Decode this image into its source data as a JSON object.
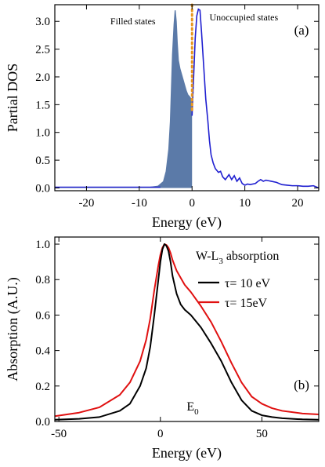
{
  "chart_data": [
    {
      "type": "area",
      "panel_label": "(a)",
      "xlabel": "Energy (eV)",
      "ylabel": "Partial DOS",
      "xlim": [
        -26,
        24
      ],
      "ylim": [
        -0.05,
        3.3
      ],
      "xticks": [
        -20,
        -10,
        0,
        10,
        20
      ],
      "yticks": [
        0.0,
        0.5,
        1.0,
        1.5,
        2.0,
        2.5,
        3.0
      ],
      "ytick_labels": [
        "0.0",
        "0.5",
        "1.0",
        "1.5",
        "2.0",
        "2.5",
        "3.0"
      ],
      "grid": false,
      "annotations": [
        {
          "text": "Filled states",
          "x": -11.2,
          "y": 2.95
        },
        {
          "text": "Unoccupied states",
          "x": 9.8,
          "y": 3.02
        }
      ],
      "fermi_level_line": {
        "x": 0,
        "style": "dotted",
        "color": "#e8961e"
      },
      "filled_color": "#5b7aa8",
      "line_color": "#1f1fd0",
      "series": [
        {
          "kind": "filled",
          "x": [
            -26,
            -8,
            -6.5,
            -5.5,
            -5,
            -4.5,
            -4.2,
            -4,
            -3.8,
            -3.5,
            -3.3,
            -3.1,
            -2.9,
            -2.7,
            -2.5,
            -2.2,
            -1.9,
            -1.6,
            -1.3,
            -1,
            -0.7,
            -0.4,
            -0.2,
            0
          ],
          "y": [
            0.02,
            0.02,
            0.04,
            0.12,
            0.3,
            0.7,
            1.2,
            1.8,
            2.4,
            2.95,
            3.2,
            3.2,
            3.0,
            2.6,
            2.3,
            2.15,
            2.05,
            1.95,
            1.85,
            1.75,
            1.68,
            1.65,
            1.62,
            1.6
          ]
        },
        {
          "kind": "line",
          "x": [
            0,
            0.3,
            0.6,
            0.9,
            1.2,
            1.5,
            1.8,
            2.2,
            2.6,
            3,
            3.3,
            3.6,
            4,
            4.4,
            5,
            5.4,
            5.8,
            6.3,
            7,
            7.5,
            8,
            8.5,
            9,
            9.5,
            10,
            10.5,
            11,
            12,
            12.5,
            13,
            13.5,
            14,
            14.5,
            15,
            16,
            17,
            18,
            19,
            20,
            21,
            22,
            23,
            24
          ],
          "y": [
            1.3,
            2.0,
            2.7,
            3.1,
            3.22,
            3.2,
            2.8,
            2.2,
            1.6,
            1.2,
            0.85,
            0.6,
            0.45,
            0.35,
            0.28,
            0.3,
            0.2,
            0.15,
            0.24,
            0.15,
            0.22,
            0.12,
            0.18,
            0.08,
            0.05,
            0.07,
            0.06,
            0.08,
            0.12,
            0.15,
            0.12,
            0.14,
            0.13,
            0.12,
            0.1,
            0.06,
            0.05,
            0.04,
            0.04,
            0.03,
            0.03,
            0.04,
            0.0
          ]
        }
      ]
    },
    {
      "type": "line",
      "panel_label": "(b)",
      "title": "W-L3 absorption",
      "title_main": "W-L",
      "title_sub": "3",
      "title_rest": " absorption",
      "xlabel": "Energy (eV)",
      "ylabel": "Absorption (A.U.)",
      "xlim": [
        -52,
        78
      ],
      "ylim": [
        0,
        1.04
      ],
      "xticks": [
        -50,
        0,
        50
      ],
      "yticks": [
        0.0,
        0.2,
        0.4,
        0.6,
        0.8,
        1.0
      ],
      "ytick_labels": [
        "0.0",
        "0.2",
        "0.4",
        "0.6",
        "0.8",
        "1.0"
      ],
      "grid": false,
      "annotation": {
        "main": "E",
        "sub": "0",
        "x": 0,
        "y": 0.06
      },
      "legend_position": "right",
      "series": [
        {
          "name": "τ= 10 eV",
          "color": "#000000",
          "x": [
            -52,
            -40,
            -30,
            -20,
            -15,
            -10,
            -7,
            -5,
            -3,
            -1,
            0,
            1,
            2,
            3,
            4,
            5,
            6,
            8,
            10,
            12,
            15,
            20,
            25,
            30,
            35,
            40,
            45,
            50,
            55,
            60,
            70,
            78
          ],
          "y": [
            0.01,
            0.015,
            0.025,
            0.06,
            0.1,
            0.2,
            0.3,
            0.42,
            0.6,
            0.8,
            0.9,
            0.97,
            1.0,
            0.99,
            0.96,
            0.9,
            0.82,
            0.72,
            0.66,
            0.63,
            0.6,
            0.53,
            0.44,
            0.34,
            0.22,
            0.12,
            0.06,
            0.035,
            0.025,
            0.018,
            0.012,
            0.01
          ]
        },
        {
          "name": "τ= 15eV",
          "color": "#e01010",
          "x": [
            -52,
            -40,
            -30,
            -20,
            -15,
            -10,
            -7,
            -5,
            -3,
            -1,
            0,
            1,
            2,
            3,
            4,
            5,
            6,
            8,
            10,
            12,
            15,
            20,
            25,
            30,
            35,
            40,
            45,
            50,
            55,
            60,
            70,
            78
          ],
          "y": [
            0.03,
            0.05,
            0.08,
            0.15,
            0.22,
            0.34,
            0.46,
            0.58,
            0.74,
            0.88,
            0.94,
            0.98,
            1.0,
            0.995,
            0.98,
            0.95,
            0.91,
            0.85,
            0.81,
            0.77,
            0.73,
            0.65,
            0.56,
            0.45,
            0.33,
            0.22,
            0.14,
            0.1,
            0.075,
            0.06,
            0.045,
            0.04
          ]
        }
      ]
    }
  ]
}
